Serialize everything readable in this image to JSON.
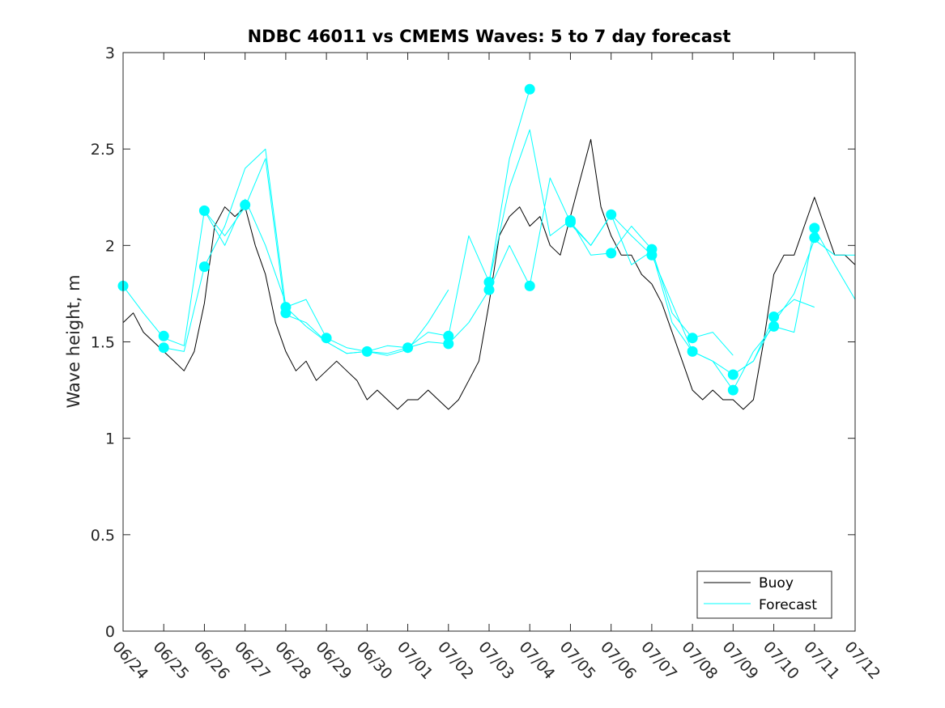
{
  "chart_data": {
    "type": "line",
    "title": "NDBC 46011 vs CMEMS Waves: 5 to 7 day forecast",
    "xlabel": "",
    "ylabel": "Wave height, m",
    "xlim": [
      "06/24",
      "07/12"
    ],
    "ylim": [
      0,
      3
    ],
    "yticks": [
      0,
      0.5,
      1,
      1.5,
      2,
      2.5,
      3
    ],
    "yticklabels": [
      "0",
      "0.5",
      "1",
      "1.5",
      "2",
      "2.5",
      "3"
    ],
    "xticklabels": [
      "06/24",
      "06/25",
      "06/26",
      "06/27",
      "06/28",
      "06/29",
      "06/30",
      "07/01",
      "07/02",
      "07/03",
      "07/04",
      "07/05",
      "07/06",
      "07/07",
      "07/08",
      "07/09",
      "07/10",
      "07/11",
      "07/12"
    ],
    "grid": false,
    "legend_location": "bottom-right",
    "colors": {
      "buoy": "#000000",
      "forecast": "#00FFFF"
    },
    "series": [
      {
        "name": "Buoy",
        "color": "#000000",
        "comment_x": "days after 06/24 00:00",
        "x": [
          0,
          0.25,
          0.5,
          0.75,
          1,
          1.25,
          1.5,
          1.75,
          2,
          2.25,
          2.5,
          2.75,
          3,
          3.25,
          3.5,
          3.75,
          4,
          4.25,
          4.5,
          4.75,
          5,
          5.25,
          5.5,
          5.75,
          6,
          6.25,
          6.5,
          6.75,
          7,
          7.25,
          7.5,
          7.75,
          8,
          8.25,
          8.5,
          8.75,
          9,
          9.25,
          9.5,
          9.75,
          10,
          10.25,
          10.5,
          10.75,
          11,
          11.25,
          11.5,
          11.75,
          12,
          12.25,
          12.5,
          12.75,
          13,
          13.25,
          13.5,
          13.75,
          14,
          14.25,
          14.5,
          14.75,
          15,
          15.25,
          15.5,
          15.75,
          16,
          16.25,
          16.5,
          16.75,
          17,
          17.25,
          17.5,
          17.75,
          18
        ],
        "values": [
          1.6,
          1.65,
          1.55,
          1.5,
          1.45,
          1.4,
          1.35,
          1.45,
          1.7,
          2.1,
          2.2,
          2.15,
          2.2,
          2.0,
          1.85,
          1.6,
          1.45,
          1.35,
          1.4,
          1.3,
          1.35,
          1.4,
          1.35,
          1.3,
          1.2,
          1.25,
          1.2,
          1.15,
          1.2,
          1.2,
          1.25,
          1.2,
          1.15,
          1.2,
          1.3,
          1.4,
          1.7,
          2.05,
          2.15,
          2.2,
          2.1,
          2.15,
          2.0,
          1.95,
          2.15,
          2.35,
          2.55,
          2.2,
          2.05,
          1.95,
          1.95,
          1.85,
          1.8,
          1.7,
          1.55,
          1.4,
          1.25,
          1.2,
          1.25,
          1.2,
          1.2,
          1.15,
          1.2,
          1.5,
          1.85,
          1.95,
          1.95,
          2.1,
          2.25,
          2.1,
          1.95,
          1.95,
          1.9
        ]
      },
      {
        "name": "Forecast",
        "color": "#00FFFF",
        "x": [
          0,
          0.5,
          1,
          1.5,
          2,
          2.5,
          3,
          3.5,
          4
        ],
        "values": [
          1.79,
          1.65,
          1.52,
          1.48,
          2.18,
          2.0,
          2.24,
          2.0,
          1.7
        ]
      },
      {
        "name": "",
        "color": "#00FFFF",
        "x": [
          1,
          1.5,
          2,
          2.5,
          3,
          3.5,
          4,
          4.5,
          5,
          5.5,
          6,
          6.5,
          7
        ],
        "values": [
          1.47,
          1.45,
          1.89,
          2.1,
          2.4,
          2.5,
          1.68,
          1.72,
          1.52,
          1.47,
          1.45,
          1.48,
          1.47
        ]
      },
      {
        "name": "",
        "color": "#00FFFF",
        "x": [
          2,
          2.5,
          3,
          3.5,
          4,
          4.5,
          5,
          5.5,
          6,
          6.5,
          7,
          7.5,
          8
        ],
        "values": [
          2.18,
          2.05,
          2.2,
          2.45,
          1.64,
          1.6,
          1.5,
          1.44,
          1.45,
          1.43,
          1.46,
          1.6,
          1.77
        ]
      },
      {
        "name": "",
        "color": "#00FFFF",
        "x": [
          4,
          4.5,
          5,
          5.5,
          6,
          6.5,
          7,
          7.5,
          8,
          8.5,
          9,
          9.5,
          10
        ],
        "values": [
          1.68,
          1.58,
          1.5,
          1.44,
          1.45,
          1.44,
          1.47,
          1.55,
          1.53,
          2.05,
          1.81,
          2.45,
          2.81
        ]
      },
      {
        "name": "",
        "color": "#00FFFF",
        "x": [
          7,
          7.5,
          8,
          8.5,
          9,
          9.5,
          10,
          10.5,
          11,
          11.5,
          12,
          12.5,
          13
        ],
        "values": [
          1.47,
          1.5,
          1.49,
          1.6,
          1.77,
          2.0,
          1.79,
          2.35,
          2.12,
          2.0,
          2.16,
          2.05,
          1.95
        ]
      },
      {
        "name": "",
        "color": "#00FFFF",
        "x": [
          9,
          9.5,
          10,
          10.5,
          11,
          11.5,
          12,
          12.5,
          13,
          13.5,
          14,
          14.5,
          15
        ],
        "values": [
          1.81,
          2.3,
          2.6,
          2.05,
          2.13,
          1.95,
          1.96,
          2.1,
          1.98,
          1.65,
          1.52,
          1.55,
          1.43
        ]
      },
      {
        "name": "",
        "color": "#00FFFF",
        "x": [
          11,
          11.5,
          12,
          12.5,
          13,
          13.5,
          14,
          14.5,
          15,
          15.5,
          16,
          16.5,
          17
        ],
        "values": [
          2.11,
          2.0,
          2.16,
          1.9,
          1.97,
          1.6,
          1.45,
          1.4,
          1.33,
          1.4,
          1.63,
          1.72,
          1.68
        ]
      },
      {
        "name": "",
        "color": "#00FFFF",
        "x": [
          13,
          13.5,
          14,
          14.5,
          15,
          15.5,
          16,
          16.5,
          17,
          17.5,
          18
        ],
        "values": [
          1.95,
          1.7,
          1.45,
          1.4,
          1.25,
          1.45,
          1.58,
          1.55,
          2.09,
          1.9,
          1.72
        ]
      },
      {
        "name": "",
        "color": "#00FFFF",
        "x": [
          15,
          15.5,
          16,
          16.5,
          17,
          17.5,
          18
        ],
        "values": [
          1.33,
          1.4,
          1.6,
          1.75,
          2.03,
          1.95,
          1.95
        ]
      }
    ],
    "forecast_markers": {
      "x": [
        0,
        1,
        1,
        2,
        2,
        3,
        4,
        4,
        5,
        6,
        7,
        8,
        8,
        9,
        9,
        10,
        10,
        11,
        11,
        12,
        12,
        13,
        13,
        14,
        14,
        15,
        15,
        16,
        16,
        17,
        17
      ],
      "values": [
        1.79,
        1.53,
        1.47,
        2.18,
        1.89,
        2.21,
        1.68,
        1.65,
        1.52,
        1.45,
        1.47,
        1.53,
        1.49,
        1.81,
        1.77,
        2.81,
        1.79,
        2.13,
        2.12,
        2.16,
        1.96,
        1.98,
        1.95,
        1.52,
        1.45,
        1.33,
        1.25,
        1.63,
        1.58,
        2.09,
        2.04
      ]
    },
    "legend": [
      {
        "label": "Buoy",
        "color": "#000000"
      },
      {
        "label": "Forecast",
        "color": "#00FFFF"
      }
    ]
  }
}
